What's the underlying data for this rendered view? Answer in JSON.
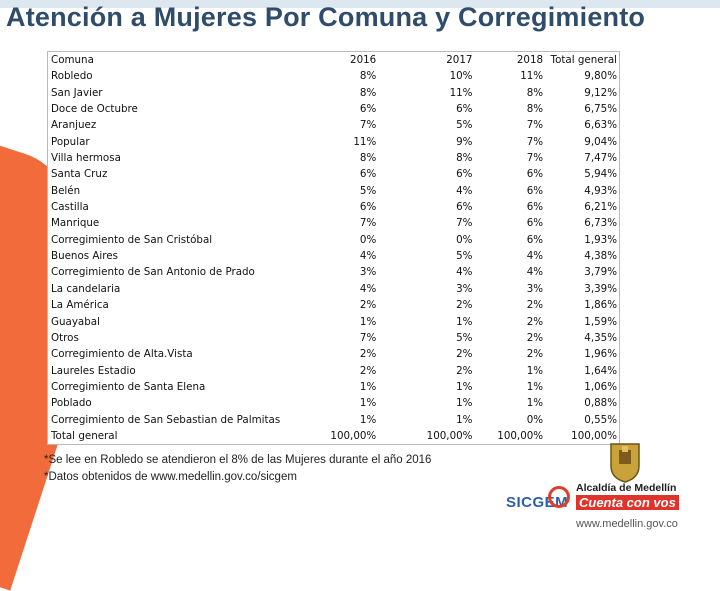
{
  "title": "Atención a Mujeres Por Comuna y Corregimiento",
  "table": {
    "headers": [
      "Comuna",
      "2016",
      "2017",
      "2018",
      "Total general"
    ],
    "rows": [
      [
        "Robledo",
        "8%",
        "10%",
        "11%",
        "9,80%"
      ],
      [
        "San Javier",
        "8%",
        "11%",
        "8%",
        "9,12%"
      ],
      [
        "Doce de Octubre",
        "6%",
        "6%",
        "8%",
        "6,75%"
      ],
      [
        "Aranjuez",
        "7%",
        "5%",
        "7%",
        "6,63%"
      ],
      [
        "Popular",
        "11%",
        "9%",
        "7%",
        "9,04%"
      ],
      [
        "Villa hermosa",
        "8%",
        "8%",
        "7%",
        "7,47%"
      ],
      [
        "Santa Cruz",
        "6%",
        "6%",
        "6%",
        "5,94%"
      ],
      [
        "Belén",
        "5%",
        "4%",
        "6%",
        "4,93%"
      ],
      [
        "Castilla",
        "6%",
        "6%",
        "6%",
        "6,21%"
      ],
      [
        "Manrique",
        "7%",
        "7%",
        "6%",
        "6,73%"
      ],
      [
        "Corregimiento de San Cristóbal",
        "0%",
        "0%",
        "6%",
        "1,93%"
      ],
      [
        "Buenos Aires",
        "4%",
        "5%",
        "4%",
        "4,38%"
      ],
      [
        "Corregimiento de San Antonio de Prado",
        "3%",
        "4%",
        "4%",
        "3,79%"
      ],
      [
        "La candelaria",
        "4%",
        "3%",
        "3%",
        "3,39%"
      ],
      [
        "La América",
        "2%",
        "2%",
        "2%",
        "1,86%"
      ],
      [
        "Guayabal",
        "1%",
        "1%",
        "2%",
        "1,59%"
      ],
      [
        "Otros",
        "7%",
        "5%",
        "2%",
        "4,35%"
      ],
      [
        "Corregimiento de Alta.Vista",
        "2%",
        "2%",
        "2%",
        "1,96%"
      ],
      [
        "Laureles Estadio",
        "2%",
        "2%",
        "1%",
        "1,64%"
      ],
      [
        "Corregimiento de Santa Elena",
        "1%",
        "1%",
        "1%",
        "1,06%"
      ],
      [
        "Poblado",
        "1%",
        "1%",
        "1%",
        "0,88%"
      ],
      [
        "Corregimiento de San Sebastian de Palmitas",
        "1%",
        "1%",
        "0%",
        "0,55%"
      ],
      [
        "Total general",
        "100,00%",
        "100,00%",
        "100,00%",
        "100,00%"
      ]
    ]
  },
  "notes": [
    "*Se lee en Robledo se atendieron el  8% de las Mujeres durante el año 2016",
    "*Datos obtenidos de www.medellin.gov.co/sicgem"
  ],
  "logos": {
    "sicgem": "SICGEM",
    "brand_name": "Alcaldía de Medellín",
    "brand_slogan": "Cuenta con vos",
    "brand_url": "www.medellin.gov.co"
  },
  "colors": {
    "title": "#2f4d6b",
    "accent_orange": "#f26b3a",
    "accent_blue": "#c9dff0",
    "brand_red": "#e0332b"
  }
}
